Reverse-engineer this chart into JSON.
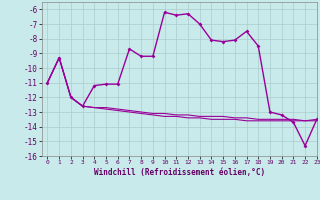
{
  "title": "",
  "xlabel": "Windchill (Refroidissement éolien,°C)",
  "ylabel": "",
  "background_color": "#c8eaea",
  "line_color": "#990099",
  "grid_color": "#aacccc",
  "xlim": [
    -0.5,
    23
  ],
  "ylim": [
    -16,
    -5.5
  ],
  "xticks": [
    0,
    1,
    2,
    3,
    4,
    5,
    6,
    7,
    8,
    9,
    10,
    11,
    12,
    13,
    14,
    15,
    16,
    17,
    18,
    19,
    20,
    21,
    22,
    23
  ],
  "yticks": [
    -6,
    -7,
    -8,
    -9,
    -10,
    -11,
    -12,
    -13,
    -14,
    -15,
    -16
  ],
  "series1_x": [
    0,
    1,
    2,
    3,
    4,
    5,
    6,
    7,
    8,
    9,
    10,
    11,
    12,
    13,
    14,
    15,
    16,
    17,
    18,
    19,
    20,
    21,
    22,
    23
  ],
  "series1_y": [
    -11,
    -9.3,
    -12,
    -12.6,
    -11.2,
    -11.1,
    -11.1,
    -8.7,
    -9.2,
    -9.2,
    -6.2,
    -6.4,
    -6.3,
    -7.0,
    -8.1,
    -8.2,
    -8.1,
    -7.5,
    -8.5,
    -13.0,
    -13.2,
    -13.7,
    -15.3,
    -13.5
  ],
  "series2_x": [
    0,
    1,
    2,
    3,
    4,
    5,
    6,
    7,
    8,
    9,
    10,
    11,
    12,
    13,
    14,
    15,
    16,
    17,
    18,
    19,
    20,
    21,
    22,
    23
  ],
  "series2_y": [
    -11.0,
    -9.3,
    -12.0,
    -12.6,
    -12.7,
    -12.7,
    -12.8,
    -12.9,
    -13.0,
    -13.1,
    -13.1,
    -13.2,
    -13.2,
    -13.3,
    -13.3,
    -13.3,
    -13.4,
    -13.4,
    -13.5,
    -13.5,
    -13.5,
    -13.5,
    -13.6,
    -13.5
  ],
  "series3_x": [
    0,
    1,
    2,
    3,
    4,
    5,
    6,
    7,
    8,
    9,
    10,
    11,
    12,
    13,
    14,
    15,
    16,
    17,
    18,
    19,
    20,
    21,
    22,
    23
  ],
  "series3_y": [
    -11.0,
    -9.3,
    -12.0,
    -12.6,
    -12.7,
    -12.8,
    -12.9,
    -13.0,
    -13.1,
    -13.2,
    -13.3,
    -13.3,
    -13.4,
    -13.4,
    -13.5,
    -13.5,
    -13.5,
    -13.6,
    -13.6,
    -13.6,
    -13.6,
    -13.6,
    -13.6,
    -13.6
  ]
}
